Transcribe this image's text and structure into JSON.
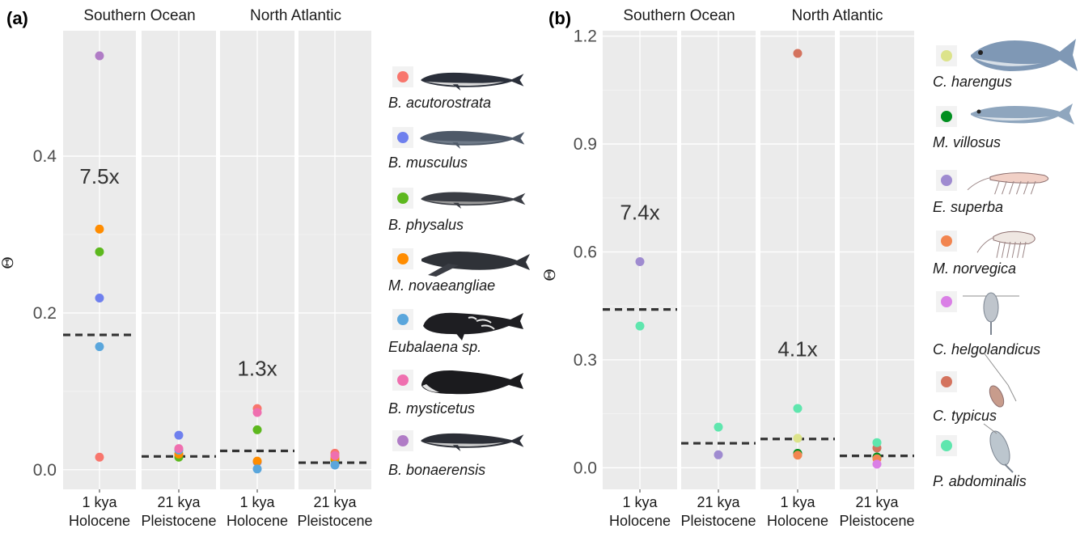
{
  "chart_data": [
    {
      "type": "scatter",
      "panel_label": "(a)",
      "ylabel": "Θ",
      "ylim": [
        -0.025,
        0.56
      ],
      "yticks": [
        0.0,
        0.2,
        0.4
      ],
      "ytick_labels": [
        "0.0",
        "0.2",
        "0.4"
      ],
      "facet_titles": [
        "Southern Ocean",
        "North Atlantic"
      ],
      "x_categories": [
        {
          "line1": "1 kya",
          "line2": "Holocene"
        },
        {
          "line1": "21 kya",
          "line2": "Pleistocene"
        },
        {
          "line1": "1 kya",
          "line2": "Holocene"
        },
        {
          "line1": "21 kya",
          "line2": "Pleistocene"
        }
      ],
      "fold_changes": [
        {
          "facet": 0,
          "label": "7.5x",
          "y": 0.365
        },
        {
          "facet": 2,
          "label": "1.3x",
          "y": 0.12
        }
      ],
      "means": [
        0.172,
        0.017,
        0.024,
        0.009
      ],
      "series": [
        {
          "name": "B. acutorostrata",
          "color": "#F8766D",
          "values": [
            0.016,
            0.02,
            0.078,
            0.021
          ]
        },
        {
          "name": "B. musculus",
          "color": "#6F80EE",
          "values": [
            0.219,
            0.044,
            0.01,
            0.012
          ]
        },
        {
          "name": "B. physalus",
          "color": "#5DB81E",
          "values": [
            0.278,
            0.016,
            0.051,
            0.013
          ]
        },
        {
          "name": "M. novaeangliae",
          "color": "#FF8C00",
          "values": [
            0.307,
            0.02,
            0.011,
            0.015
          ]
        },
        {
          "name": "Eubalaena sp.",
          "color": "#5AA6DC",
          "values": [
            0.157,
            0.025,
            0.001,
            0.006
          ]
        },
        {
          "name": "B. mysticetus",
          "color": "#EF6FAF",
          "values": [
            null,
            0.027,
            0.073,
            0.018
          ]
        },
        {
          "name": "B. bonaerensis",
          "color": "#B07CC6",
          "values": [
            0.528,
            null,
            null,
            null
          ]
        }
      ],
      "grid": true
    },
    {
      "type": "scatter",
      "panel_label": "(b)",
      "ylabel": "Θ",
      "ylim": [
        -0.06,
        1.215
      ],
      "yticks": [
        0.0,
        0.3,
        0.6,
        0.9,
        1.2
      ],
      "ytick_labels": [
        "0.0",
        "0.3",
        "0.6",
        "0.9",
        "1.2"
      ],
      "facet_titles": [
        "Southern Ocean",
        "North Atlantic"
      ],
      "x_categories": [
        {
          "line1": "1 kya",
          "line2": "Holocene"
        },
        {
          "line1": "21 kya",
          "line2": "Pleistocene"
        },
        {
          "line1": "1 kya",
          "line2": "Holocene"
        },
        {
          "line1": "21 kya",
          "line2": "Pleistocene"
        }
      ],
      "fold_changes": [
        {
          "facet": 0,
          "label": "7.4x",
          "y": 0.69
        },
        {
          "facet": 2,
          "label": "4.1x",
          "y": 0.31
        }
      ],
      "means": [
        0.44,
        0.068,
        0.08,
        0.033
      ],
      "series": [
        {
          "name": "C. harengus",
          "color": "#DCE38A",
          "values": [
            null,
            null,
            0.082,
            null
          ]
        },
        {
          "name": "M. villosus",
          "color": "#008F1F",
          "values": [
            null,
            null,
            0.04,
            0.03
          ]
        },
        {
          "name": "E. superba",
          "color": "#9F8BD0",
          "values": [
            0.573,
            0.036,
            null,
            null
          ]
        },
        {
          "name": "M. norvegica",
          "color": "#F28550",
          "values": [
            null,
            null,
            0.035,
            0.025
          ]
        },
        {
          "name": "C. helgolandicus",
          "color": "#DA7FE6",
          "values": [
            null,
            null,
            null,
            0.01
          ]
        },
        {
          "name": "C. typicus",
          "color": "#D4735E",
          "values": [
            null,
            null,
            1.152,
            0.055
          ]
        },
        {
          "name": "P. abdominalis",
          "color": "#5FE6AE",
          "values": [
            0.394,
            0.113,
            0.165,
            0.07
          ]
        }
      ],
      "grid": true
    }
  ]
}
